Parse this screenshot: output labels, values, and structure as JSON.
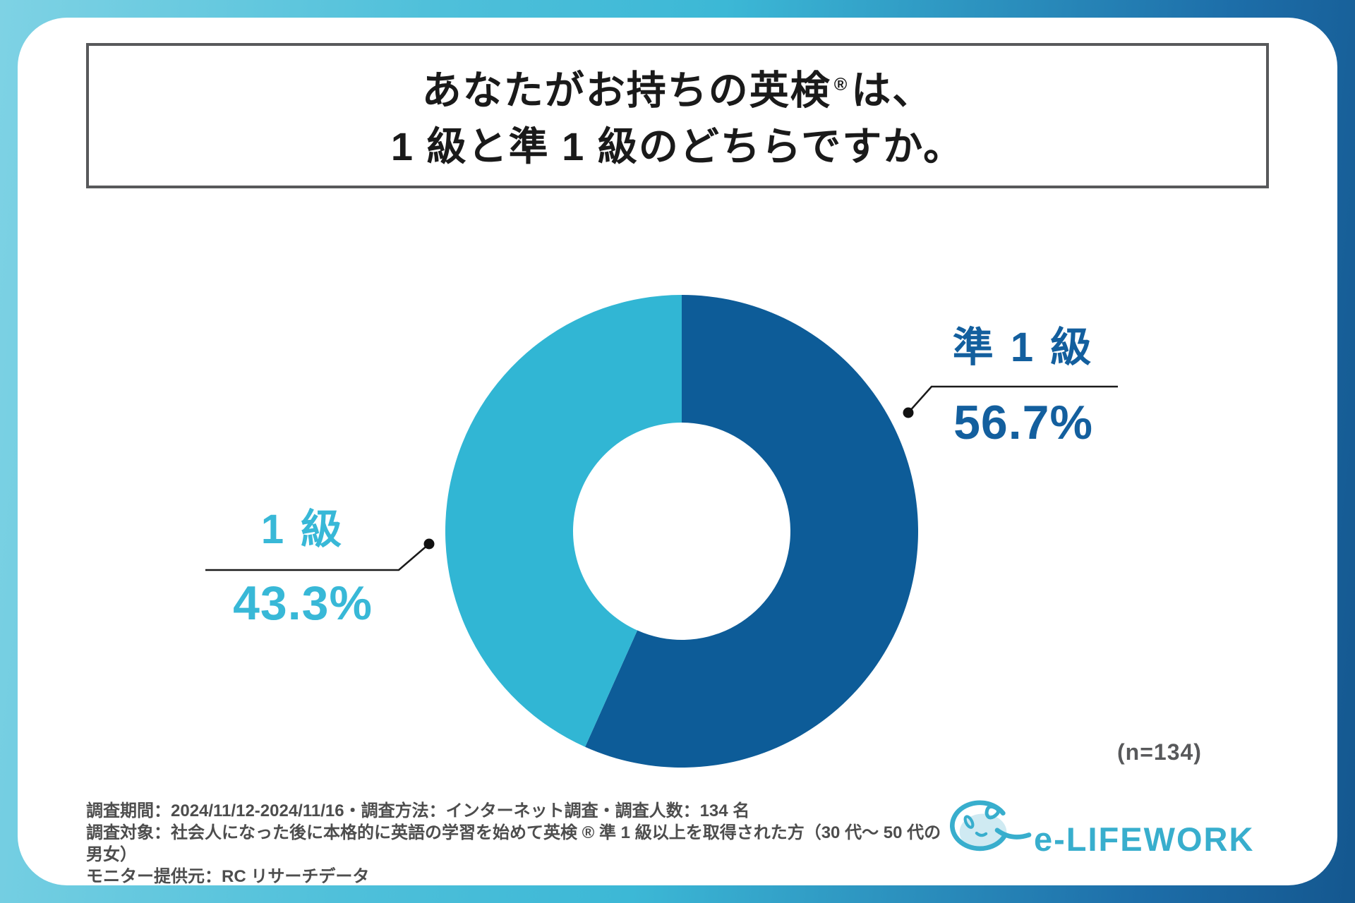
{
  "frame": {
    "gradient_colors": [
      "#7ED2E4",
      "#3CB8D6",
      "#14578F"
    ]
  },
  "title": {
    "line1_main": "あなたがお持ちの英検",
    "registered_mark": "®",
    "line1_tail": "は、",
    "line2": "1 級と準 1 級のどちらですか。"
  },
  "chart_data": {
    "type": "pie",
    "subtype": "donut",
    "title": "あなたがお持ちの英検®は、1級と準1級のどちらですか。",
    "categories": [
      "準1級",
      "1級"
    ],
    "values": [
      56.7,
      43.3
    ],
    "unit": "%",
    "colors": [
      "#0D5C98",
      "#31B6D4"
    ],
    "start_angle_deg": 0,
    "direction": "clockwise",
    "inner_radius_ratio": 0.46,
    "legend": "none",
    "sample_size": 134
  },
  "callouts": [
    {
      "label": "準 1 級",
      "value": "56.7%",
      "color": "#135F9E"
    },
    {
      "label": "1 級",
      "value": "43.3%",
      "color": "#38B8D7"
    }
  ],
  "sample_note": "(n=134)",
  "footer": {
    "line1": "調査期間：2024/11/12-2024/11/16・調査方法：インターネット調査・調査人数：134 名",
    "line2": "調査対象：社会人になった後に本格的に英語の学習を始めて英検 ® 準 1 級以上を取得された方（30 代〜 50 代の男女）",
    "line3": "モニター提供元：RC リサーチデータ"
  },
  "logo": {
    "text": "e-LIFEWORK",
    "color": "#38AECD"
  }
}
